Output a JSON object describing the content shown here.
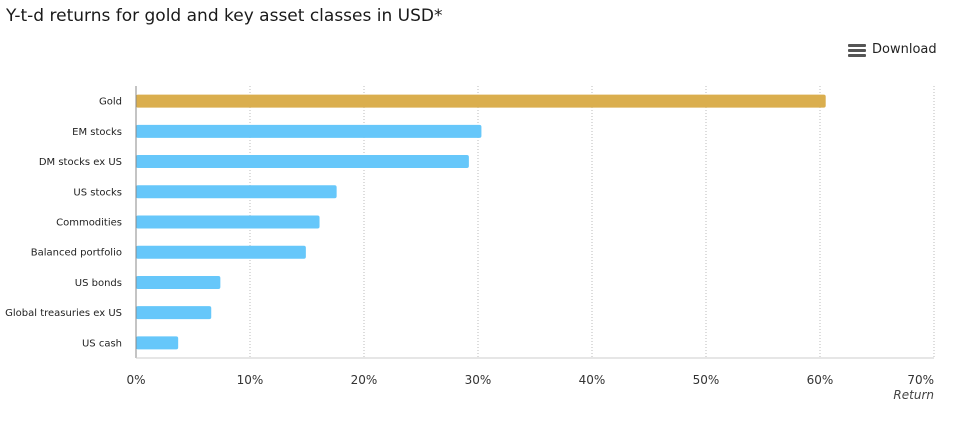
{
  "header": {
    "title": "Y-t-d returns for gold and key asset classes in USD*",
    "download_label": "Download",
    "download_icon": "menu-icon"
  },
  "chart_data": {
    "type": "bar",
    "orientation": "horizontal",
    "title": "Y-t-d returns for gold and key asset classes in USD*",
    "xlabel": "Return",
    "ylabel": "",
    "xlim": [
      0,
      70
    ],
    "x_ticks": [
      0,
      10,
      20,
      30,
      40,
      50,
      60,
      70
    ],
    "x_tick_labels": [
      "0%",
      "10%",
      "20%",
      "30%",
      "40%",
      "50%",
      "60%",
      "70%"
    ],
    "grid": "vertical dotted",
    "categories": [
      "Gold",
      "EM stocks",
      "DM stocks ex US",
      "US stocks",
      "Commodities",
      "Balanced portfolio",
      "US bonds",
      "Global treasuries ex US",
      "US cash"
    ],
    "values": [
      60.5,
      30.3,
      29.2,
      17.6,
      16.1,
      14.9,
      7.4,
      6.6,
      3.7
    ],
    "colors": [
      "#DAAE4E",
      "#66C7FA",
      "#66C7FA",
      "#66C7FA",
      "#66C7FA",
      "#66C7FA",
      "#66C7FA",
      "#66C7FA",
      "#66C7FA"
    ]
  }
}
